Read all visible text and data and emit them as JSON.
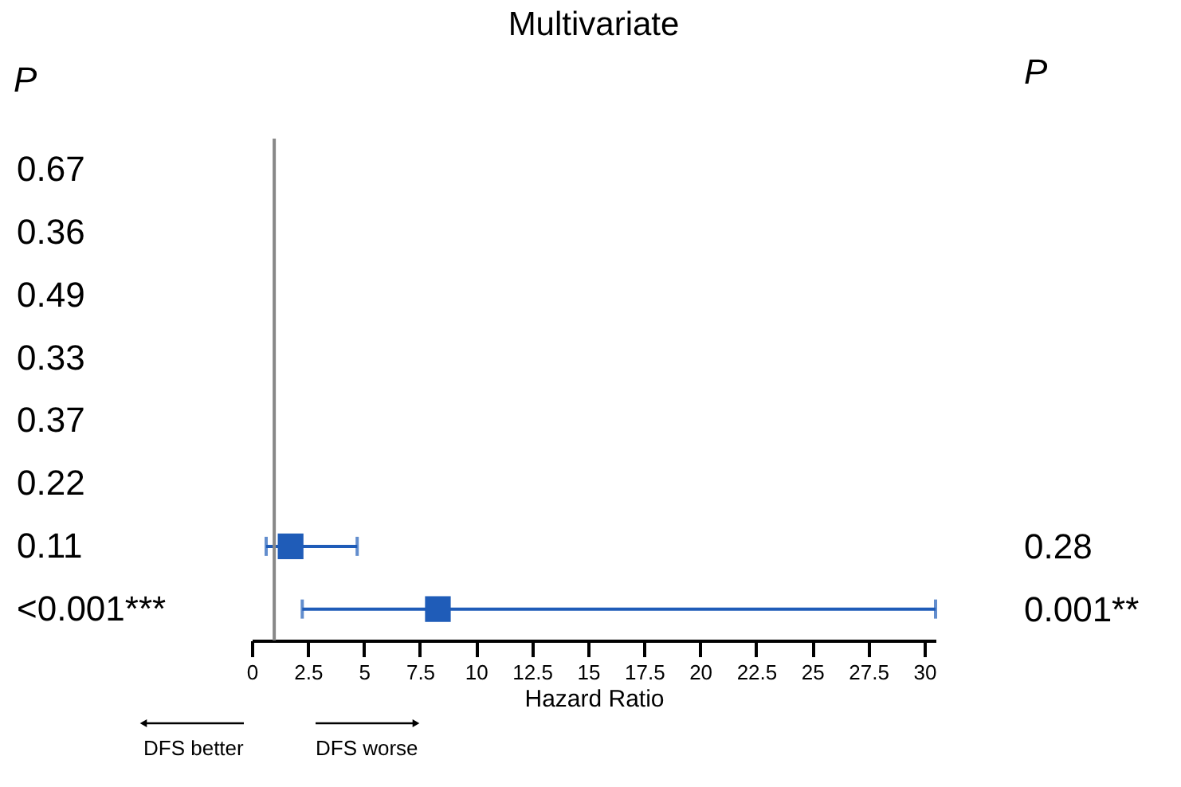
{
  "chart_data": {
    "type": "scatter",
    "orientation": "horizontal",
    "title": "Multivariate",
    "xlabel": "Hazard Ratio",
    "ylabel": "P",
    "y2label": "P",
    "categories": [
      "0.67",
      "0.36",
      "0.49",
      "0.33",
      "0.37",
      "0.22",
      "0.11",
      "<0.001***"
    ],
    "y2_categories": [
      null,
      null,
      null,
      null,
      null,
      null,
      "0.28",
      "0.001**"
    ],
    "series": [
      {
        "color": "#1f5cb8",
        "values": [
          null,
          null,
          null,
          null,
          null,
          null,
          1.73,
          8.3
        ],
        "errors": [
          null,
          null,
          null,
          null,
          null,
          null,
          [
            0.64,
            4.7
          ],
          [
            2.25,
            30.5
          ]
        ]
      }
    ],
    "xlim": [
      0,
      30.5
    ],
    "xticks": [
      0,
      2.5,
      5,
      7.5,
      10,
      12.5,
      15,
      17.5,
      20,
      22.5,
      25,
      27.5,
      30
    ],
    "ref_lines": [
      {
        "axis": "x",
        "value": 1,
        "color": "#888888"
      }
    ],
    "annotations": [
      "DFS better",
      "DFS worse"
    ],
    "marker": "square",
    "grid": false
  }
}
